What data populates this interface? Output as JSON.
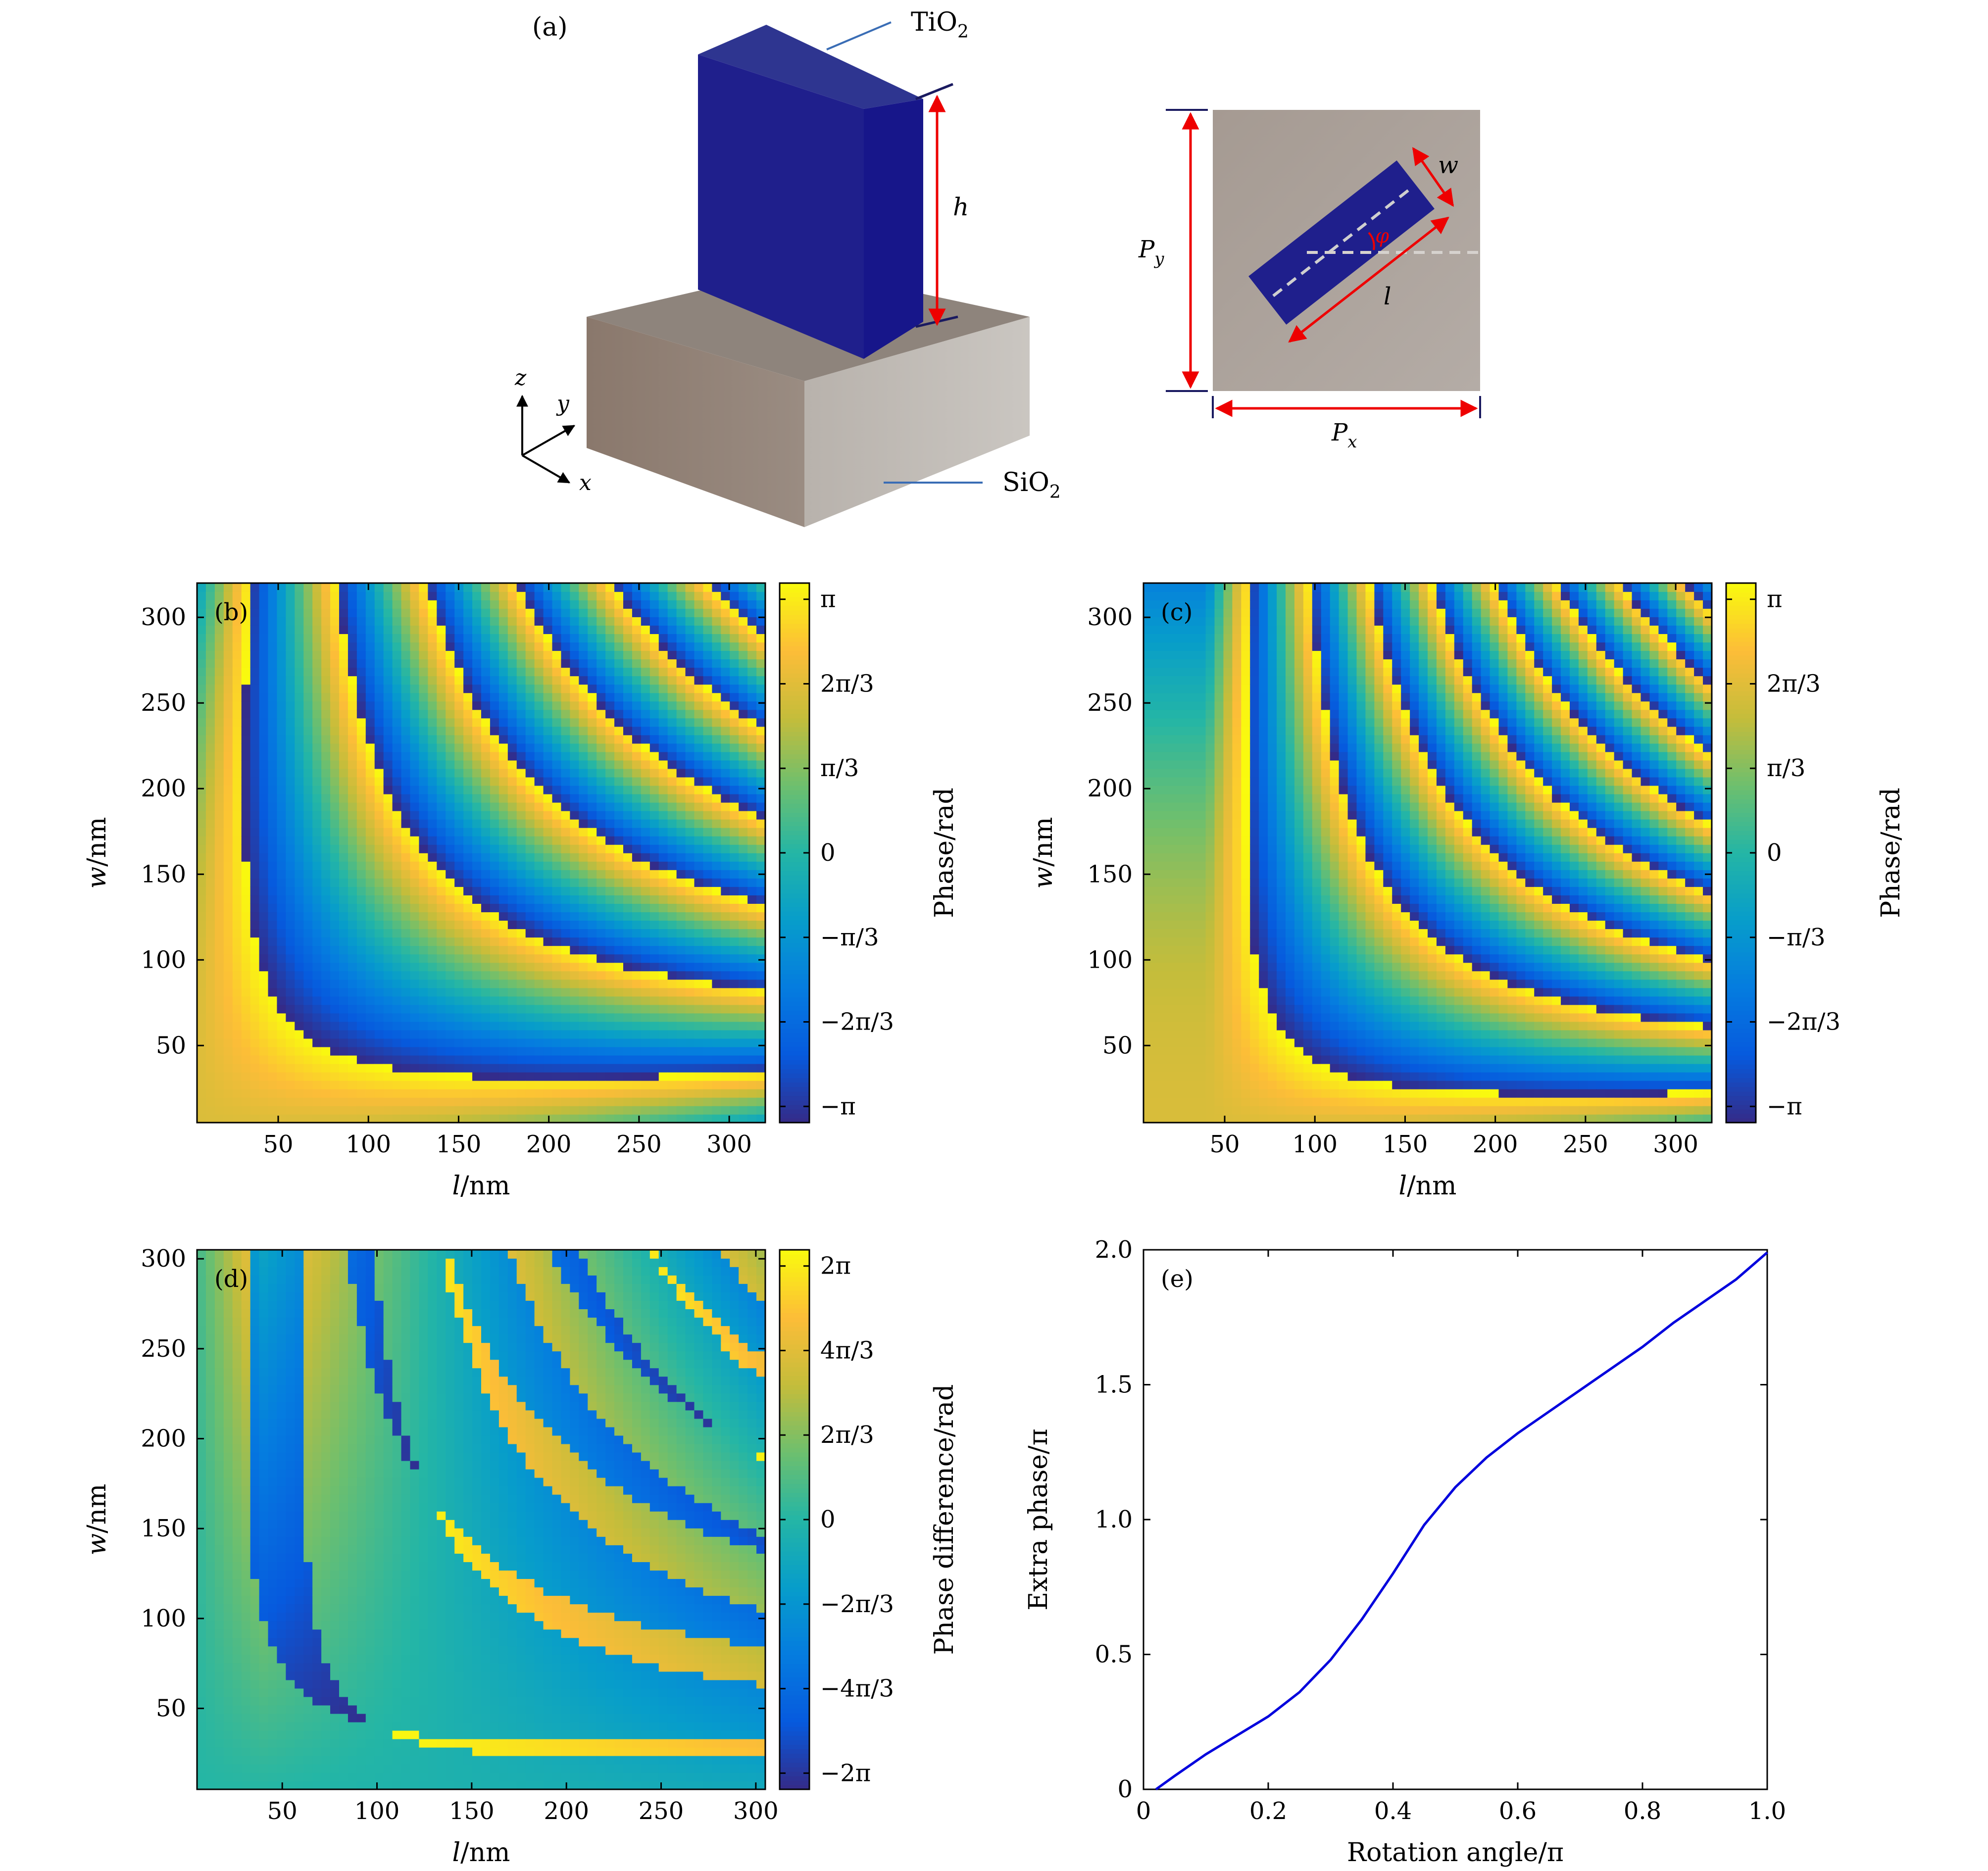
{
  "panel_a": {
    "tag": "(a)",
    "tio2_label": "TiO",
    "tio2_sub": "2",
    "sio2_label": "SiO",
    "sio2_sub": "2",
    "h_label": "h",
    "axis_x": "x",
    "axis_y": "y",
    "axis_z": "z",
    "w_label": "w",
    "l_label": "l",
    "phi_label": "φ",
    "px_label": "P",
    "px_sub": "x",
    "py_label": "P",
    "py_sub": "y"
  },
  "colors": {
    "pillar_front": "#1f1f8c",
    "pillar_side": "#17168a",
    "pillar_top": "#2e3590",
    "substrate_left": "#8c7a6e",
    "substrate_right": "#c4c0bb",
    "substrate_top": "#8e847c",
    "red_arrow": "#ee0000",
    "curve": "#0000dd"
  },
  "chart_data": [
    {
      "type": "heatmap",
      "panel": "(b)",
      "xlabel_var": "l",
      "xlabel_unit": "/nm",
      "ylabel_var": "w",
      "ylabel_unit": "/nm",
      "colorbar_label": "Phase/rad",
      "xlim": [
        5,
        320
      ],
      "ylim": [
        5,
        320
      ],
      "xticks": [
        50,
        100,
        150,
        200,
        250,
        300
      ],
      "yticks": [
        50,
        100,
        150,
        200,
        250,
        300
      ],
      "clim": [
        -3.1416,
        3.1416
      ],
      "cticks": [
        -3.1416,
        -2.0944,
        -1.0472,
        0,
        1.0472,
        2.0944,
        3.1416
      ],
      "cticklabels": [
        "−π",
        "−2π/3",
        "−π/3",
        "0",
        "π/3",
        "2π/3",
        "π"
      ],
      "ref_l": 0,
      "ref_w": 0,
      "wrap_scale": 15000,
      "offset": 1.85,
      "decay": 1.6e-05
    },
    {
      "type": "heatmap",
      "panel": "(c)",
      "xlabel_var": "l",
      "xlabel_unit": "/nm",
      "ylabel_var": "w",
      "ylabel_unit": "/nm",
      "colorbar_label": "Phase/rad",
      "xlim": [
        5,
        320
      ],
      "ylim": [
        5,
        320
      ],
      "xticks": [
        50,
        100,
        150,
        200,
        250,
        300
      ],
      "yticks": [
        50,
        100,
        150,
        200,
        250,
        300
      ],
      "clim": [
        -3.1416,
        3.1416
      ],
      "cticks": [
        -3.1416,
        -2.0944,
        -1.0472,
        0,
        1.0472,
        2.0944,
        3.1416
      ],
      "cticklabels": [
        "−π",
        "−2π/3",
        "−π/3",
        "0",
        "π/3",
        "2π/3",
        "π"
      ],
      "ref_l": 40,
      "ref_w": 0,
      "wrap_scale": 10500,
      "offset": 1.85,
      "decay": 1.6e-05
    },
    {
      "type": "heatmap",
      "panel": "(d)",
      "xlabel_var": "l",
      "xlabel_unit": "/nm",
      "ylabel_var": "w",
      "ylabel_unit": "/nm",
      "colorbar_label": "Phase difference/rad",
      "xlim": [
        5,
        305
      ],
      "ylim": [
        5,
        305
      ],
      "xticks": [
        50,
        100,
        150,
        200,
        250,
        300
      ],
      "yticks": [
        50,
        100,
        150,
        200,
        250,
        300
      ],
      "clim": [
        -6.2832,
        6.2832
      ],
      "cticks": [
        -6.2832,
        -4.1888,
        -2.0944,
        0,
        2.0944,
        4.1888,
        6.2832
      ],
      "cticklabels": [
        "−2π",
        "−4π/3",
        "−2π/3",
        "0",
        "2π/3",
        "4π/3",
        "2π"
      ],
      "diff_of": [
        0,
        1
      ]
    },
    {
      "type": "line",
      "panel": "(e)",
      "xlabel": "Rotation angle/π",
      "ylabel": "Extra phase/π",
      "xlim": [
        0,
        1
      ],
      "ylim": [
        0,
        2
      ],
      "xticks": [
        0,
        0.2,
        0.4,
        0.6,
        0.8,
        1.0
      ],
      "xticklabels": [
        "0",
        "0.2",
        "0.4",
        "0.6",
        "0.8",
        "1.0"
      ],
      "yticks": [
        0,
        0.5,
        1.0,
        1.5,
        2.0
      ],
      "yticklabels": [
        "0",
        "0.5",
        "1.0",
        "1.5",
        "2.0"
      ],
      "x": [
        0.02,
        0.05,
        0.1,
        0.15,
        0.2,
        0.25,
        0.3,
        0.35,
        0.4,
        0.45,
        0.5,
        0.55,
        0.6,
        0.65,
        0.7,
        0.75,
        0.8,
        0.85,
        0.9,
        0.95,
        1.0
      ],
      "y": [
        0.0,
        0.05,
        0.13,
        0.2,
        0.27,
        0.36,
        0.48,
        0.63,
        0.8,
        0.98,
        1.12,
        1.23,
        1.32,
        1.4,
        1.48,
        1.56,
        1.64,
        1.73,
        1.81,
        1.89,
        1.99
      ]
    }
  ]
}
